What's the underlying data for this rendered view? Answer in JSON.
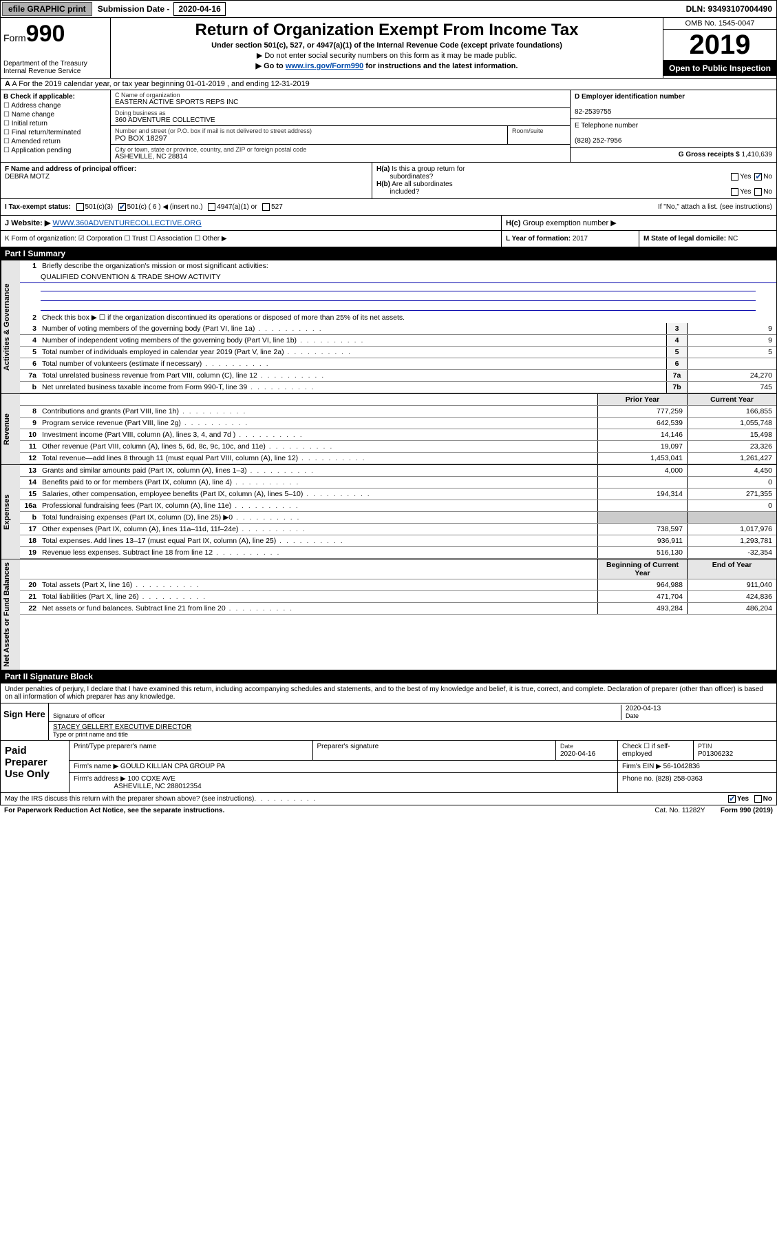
{
  "topbar": {
    "efile": "efile GRAPHIC print",
    "sub_label": "Submission Date - ",
    "sub_date": "2020-04-16",
    "dln": "DLN: 93493107004490"
  },
  "header": {
    "form_prefix": "Form",
    "form_num": "990",
    "dept": "Department of the Treasury\nInternal Revenue Service",
    "title": "Return of Organization Exempt From Income Tax",
    "subtitle": "Under section 501(c), 527, or 4947(a)(1) of the Internal Revenue Code (except private foundations)",
    "line1": "▶ Do not enter social security numbers on this form as it may be made public.",
    "line2_pre": "▶ Go to ",
    "line2_link": "www.irs.gov/Form990",
    "line2_post": " for instructions and the latest information.",
    "omb": "OMB No. 1545-0047",
    "year": "2019",
    "open": "Open to Public Inspection"
  },
  "row_a": "A For the 2019 calendar year, or tax year beginning 01-01-2019   , and ending 12-31-2019",
  "col_b": {
    "hdr": "B Check if applicable:",
    "items": [
      "Address change",
      "Name change",
      "Initial return",
      "Final return/terminated",
      "Amended return",
      "Application pending"
    ]
  },
  "col_c": {
    "name_lbl": "C Name of organization",
    "name": "EASTERN ACTIVE SPORTS REPS INC",
    "dba_lbl": "Doing business as",
    "dba": "360 ADVENTURE COLLECTIVE",
    "addr_lbl": "Number and street (or P.O. box if mail is not delivered to street address)",
    "room_lbl": "Room/suite",
    "addr": "PO BOX 18297",
    "city_lbl": "City or town, state or province, country, and ZIP or foreign postal code",
    "city": "ASHEVILLE, NC  28814"
  },
  "col_d": {
    "ein_lbl": "D Employer identification number",
    "ein": "82-2539755",
    "tel_lbl": "E Telephone number",
    "tel": "(828) 252-7956",
    "gross_lbl": "G Gross receipts $ ",
    "gross": "1,410,639"
  },
  "row_f": {
    "lbl": "F  Name and address of principal officer:",
    "name": "DEBRA MOTZ"
  },
  "row_h": {
    "a": "H(a)  Is this a group return for subordinates?",
    "a_yes": "Yes",
    "a_no": "No",
    "b": "H(b)  Are all subordinates included?",
    "b_yes": "Yes",
    "b_no": "No",
    "b_note": "If \"No,\" attach a list. (see instructions)",
    "c": "H(c)  Group exemption number ▶"
  },
  "row_i": {
    "lbl": "I   Tax-exempt status:",
    "opts": [
      "501(c)(3)",
      "501(c) ( 6 ) ◀ (insert no.)",
      "4947(a)(1) or",
      "527"
    ]
  },
  "row_j": {
    "web_lbl": "J  Website: ▶  ",
    "web": "WWW.360ADVENTURECOLLECTIVE.ORG"
  },
  "row_k": {
    "left": "K Form of organization:   ☑ Corporation  ☐ Trust  ☐ Association  ☐ Other ▶",
    "mid_lbl": "L Year of formation: ",
    "mid": "2017",
    "right_lbl": "M State of legal domicile: ",
    "right": "NC"
  },
  "part1": {
    "hdr": "Part I      Summary",
    "q1": "Briefly describe the organization's mission or most significant activities:",
    "mission": "QUALIFIED CONVENTION & TRADE SHOW ACTIVITY",
    "q2": "Check this box ▶ ☐  if the organization discontinued its operations or disposed of more than 25% of its net assets.",
    "lines_gov": [
      {
        "n": "3",
        "t": "Number of voting members of the governing body (Part VI, line 1a)",
        "box": "3",
        "v": "9"
      },
      {
        "n": "4",
        "t": "Number of independent voting members of the governing body (Part VI, line 1b)",
        "box": "4",
        "v": "9"
      },
      {
        "n": "5",
        "t": "Total number of individuals employed in calendar year 2019 (Part V, line 2a)",
        "box": "5",
        "v": "5"
      },
      {
        "n": "6",
        "t": "Total number of volunteers (estimate if necessary)",
        "box": "6",
        "v": ""
      },
      {
        "n": "7a",
        "t": "Total unrelated business revenue from Part VIII, column (C), line 12",
        "box": "7a",
        "v": "24,270"
      },
      {
        "n": "b",
        "t": "Net unrelated business taxable income from Form 990-T, line 39",
        "box": "7b",
        "v": "745"
      }
    ],
    "col_prior": "Prior Year",
    "col_curr": "Current Year",
    "lines_rev": [
      {
        "n": "8",
        "t": "Contributions and grants (Part VIII, line 1h)",
        "p": "777,259",
        "c": "166,855"
      },
      {
        "n": "9",
        "t": "Program service revenue (Part VIII, line 2g)",
        "p": "642,539",
        "c": "1,055,748"
      },
      {
        "n": "10",
        "t": "Investment income (Part VIII, column (A), lines 3, 4, and 7d )",
        "p": "14,146",
        "c": "15,498"
      },
      {
        "n": "11",
        "t": "Other revenue (Part VIII, column (A), lines 5, 6d, 8c, 9c, 10c, and 11e)",
        "p": "19,097",
        "c": "23,326"
      },
      {
        "n": "12",
        "t": "Total revenue—add lines 8 through 11 (must equal Part VIII, column (A), line 12)",
        "p": "1,453,041",
        "c": "1,261,427"
      }
    ],
    "lines_exp": [
      {
        "n": "13",
        "t": "Grants and similar amounts paid (Part IX, column (A), lines 1–3)",
        "p": "4,000",
        "c": "4,450"
      },
      {
        "n": "14",
        "t": "Benefits paid to or for members (Part IX, column (A), line 4)",
        "p": "",
        "c": "0"
      },
      {
        "n": "15",
        "t": "Salaries, other compensation, employee benefits (Part IX, column (A), lines 5–10)",
        "p": "194,314",
        "c": "271,355"
      },
      {
        "n": "16a",
        "t": "Professional fundraising fees (Part IX, column (A), line 11e)",
        "p": "",
        "c": "0"
      },
      {
        "n": "b",
        "t": "Total fundraising expenses (Part IX, column (D), line 25) ▶0",
        "p": "",
        "c": ""
      },
      {
        "n": "17",
        "t": "Other expenses (Part IX, column (A), lines 11a–11d, 11f–24e)",
        "p": "738,597",
        "c": "1,017,976"
      },
      {
        "n": "18",
        "t": "Total expenses. Add lines 13–17 (must equal Part IX, column (A), line 25)",
        "p": "936,911",
        "c": "1,293,781"
      },
      {
        "n": "19",
        "t": "Revenue less expenses. Subtract line 18 from line 12",
        "p": "516,130",
        "c": "-32,354"
      }
    ],
    "col_beg": "Beginning of Current Year",
    "col_end": "End of Year",
    "lines_net": [
      {
        "n": "20",
        "t": "Total assets (Part X, line 16)",
        "p": "964,988",
        "c": "911,040"
      },
      {
        "n": "21",
        "t": "Total liabilities (Part X, line 26)",
        "p": "471,704",
        "c": "424,836"
      },
      {
        "n": "22",
        "t": "Net assets or fund balances. Subtract line 21 from line 20",
        "p": "493,284",
        "c": "486,204"
      }
    ]
  },
  "part2": {
    "hdr": "Part II     Signature Block",
    "decl": "Under penalties of perjury, I declare that I have examined this return, including accompanying schedules and statements, and to the best of my knowledge and belief, it is true, correct, and complete. Declaration of preparer (other than officer) is based on all information of which preparer has any knowledge.",
    "sign_here": "Sign Here",
    "sig_lbl": "Signature of officer",
    "date_lbl": "Date",
    "date": "2020-04-13",
    "name": "STACEY GELLERT  EXECUTIVE DIRECTOR",
    "name_lbl": "Type or print name and title"
  },
  "paid": {
    "hdr": "Paid Preparer Use Only",
    "r1": {
      "c1": "Print/Type preparer's name",
      "c2": "Preparer's signature",
      "c3_lbl": "Date",
      "c3": "2020-04-16",
      "c4": "Check ☐ if self-employed",
      "c5_lbl": "PTIN",
      "c5": "P01306232"
    },
    "r2": {
      "lbl": "Firm's name    ▶ ",
      "val": "GOULD KILLIAN CPA GROUP PA",
      "ein_lbl": "Firm's EIN ▶ ",
      "ein": "56-1042836"
    },
    "r3": {
      "lbl": "Firm's address ▶ ",
      "val": "100 COXE AVE",
      "city": "ASHEVILLE, NC  288012354",
      "ph_lbl": "Phone no. ",
      "ph": "(828) 258-0363"
    }
  },
  "foot": {
    "q": "May the IRS discuss this return with the preparer shown above? (see instructions)",
    "yes": "Yes",
    "no": "No",
    "pra": "For Paperwork Reduction Act Notice, see the separate instructions.",
    "cat": "Cat. No. 11282Y",
    "form": "Form 990 (2019)"
  },
  "vtabs": {
    "gov": "Activities & Governance",
    "rev": "Revenue",
    "exp": "Expenses",
    "net": "Net Assets or Fund Balances"
  }
}
